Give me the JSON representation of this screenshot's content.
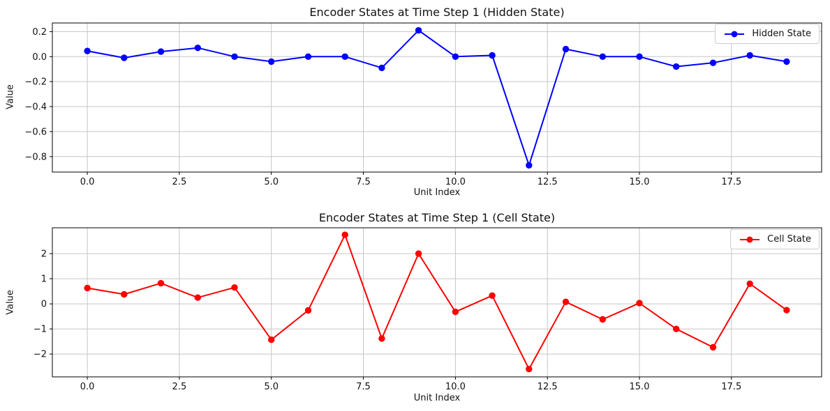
{
  "figure": {
    "background": "#ffffff"
  },
  "chart_data": [
    {
      "type": "line",
      "title": "Encoder States at Time Step 1 (Hidden State)",
      "xlabel": "Unit Index",
      "ylabel": "Value",
      "legend": {
        "label": "Hidden State",
        "position": "upper right"
      },
      "color": "#0000ff",
      "marker": "circle",
      "grid": true,
      "x": [
        0,
        1,
        2,
        3,
        4,
        5,
        6,
        7,
        8,
        9,
        10,
        11,
        12,
        13,
        14,
        15,
        16,
        17,
        18,
        19
      ],
      "values": [
        0.045,
        -0.01,
        0.04,
        0.07,
        0.0,
        -0.04,
        0.0,
        0.0,
        -0.09,
        0.21,
        0.0,
        0.01,
        -0.87,
        0.06,
        0.0,
        0.0,
        -0.08,
        -0.05,
        0.01,
        -0.04
      ],
      "xlim": [
        -0.95,
        19.95
      ],
      "ylim": [
        -0.924,
        0.269
      ],
      "xticks": {
        "values": [
          0,
          2.5,
          5,
          7.5,
          10,
          12.5,
          15,
          17.5
        ],
        "labels": [
          "0.0",
          "2.5",
          "5.0",
          "7.5",
          "10.0",
          "12.5",
          "15.0",
          "17.5"
        ]
      },
      "yticks": {
        "values": [
          0.2,
          0.0,
          -0.2,
          -0.4,
          -0.6,
          -0.8
        ],
        "labels": [
          "0.2",
          "0.0",
          "−0.2",
          "−0.4",
          "−0.6",
          "−0.8"
        ]
      }
    },
    {
      "type": "line",
      "title": "Encoder States at Time Step 1 (Cell State)",
      "xlabel": "Unit Index",
      "ylabel": "Value",
      "legend": {
        "label": "Cell State",
        "position": "upper right"
      },
      "color": "#ff0000",
      "marker": "circle",
      "grid": true,
      "x": [
        0,
        1,
        2,
        3,
        4,
        5,
        6,
        7,
        8,
        9,
        10,
        11,
        12,
        13,
        14,
        15,
        16,
        17,
        18,
        19
      ],
      "values": [
        0.63,
        0.38,
        0.82,
        0.25,
        0.65,
        -1.43,
        -0.26,
        2.75,
        -1.38,
        2.0,
        -0.32,
        0.33,
        -2.6,
        0.08,
        -0.62,
        0.03,
        -1.0,
        -1.73,
        0.8,
        -0.25
      ],
      "xlim": [
        -0.95,
        19.95
      ],
      "ylim": [
        -2.91,
        3.03
      ],
      "xticks": {
        "values": [
          0,
          2.5,
          5,
          7.5,
          10,
          12.5,
          15,
          17.5
        ],
        "labels": [
          "0.0",
          "2.5",
          "5.0",
          "7.5",
          "10.0",
          "12.5",
          "15.0",
          "17.5"
        ]
      },
      "yticks": {
        "values": [
          2,
          1,
          0,
          -1,
          -2
        ],
        "labels": [
          "2",
          "1",
          "0",
          "−1",
          "−2"
        ]
      }
    }
  ]
}
